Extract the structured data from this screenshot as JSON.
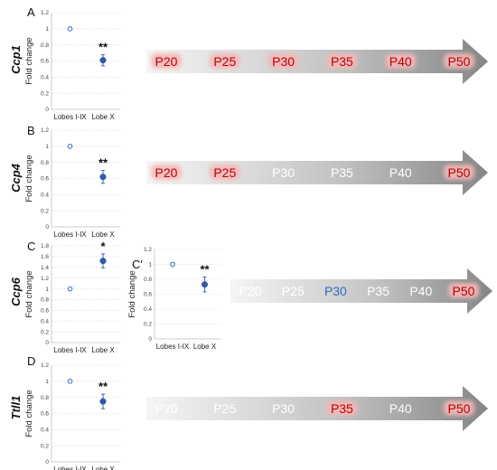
{
  "colors": {
    "point_ctrl_edge": "#4472c4",
    "point_fill": "#2e58a8",
    "error_bar": "#2e58a8",
    "grid": "#d9d9d9",
    "stage_red": "#c00000",
    "stage_white": "#ffffff",
    "stage_blue": "#2e6fc2",
    "stage_glow": "#f3b8b8",
    "arrow_light": "#f4f4f4",
    "arrow_dark": "#8a8a8a"
  },
  "chart_data": [
    {
      "type": "scatter",
      "panel": "A",
      "gene": "Ccp1",
      "ylabel": "Fold change",
      "categories": [
        "Lobes I-IX",
        "Lobe X"
      ],
      "values": [
        1.0,
        0.61
      ],
      "error": [
        0,
        0.07
      ],
      "ylim": [
        0,
        1.2
      ],
      "yticks": [
        "0",
        "0.2",
        "0.4",
        "0.6",
        "0.8",
        "1",
        "1.2"
      ],
      "significance": "**",
      "grid": true
    },
    {
      "type": "scatter",
      "panel": "B",
      "gene": "Ccp4",
      "ylabel": "Fold change",
      "categories": [
        "Lobes I-IX",
        "Lobe X"
      ],
      "values": [
        1.0,
        0.62
      ],
      "error": [
        0,
        0.08
      ],
      "ylim": [
        0,
        1.2
      ],
      "yticks": [
        "0",
        "0.2",
        "0.4",
        "0.6",
        "0.8",
        "1",
        "1.2"
      ],
      "significance": "**",
      "grid": true
    },
    {
      "type": "scatter",
      "panel": "C",
      "gene": "Ccp6",
      "ylabel": "Fold change",
      "categories": [
        "Lobes I-IX",
        "Lobe X"
      ],
      "values": [
        1.0,
        1.52
      ],
      "error": [
        0,
        0.13
      ],
      "ylim": [
        0,
        1.8
      ],
      "yticks": [
        "0",
        "0.2",
        "0.4",
        "0.6",
        "0.8",
        "1",
        "1.2",
        "1.4",
        "1.6",
        "1.8"
      ],
      "significance": "*",
      "grid": true
    },
    {
      "type": "scatter",
      "panel": "C'",
      "ylabel": "Fold change",
      "categories": [
        "Lobes I-IX",
        "Lobe X"
      ],
      "values": [
        1.0,
        0.73
      ],
      "error": [
        0,
        0.1
      ],
      "ylim": [
        0,
        1.2
      ],
      "yticks": [
        "0",
        "0.2",
        "0.4",
        "0.6",
        "0.8",
        "1",
        "1.2"
      ],
      "significance": "**",
      "grid": true
    },
    {
      "type": "scatter",
      "panel": "D",
      "gene": "Ttll1",
      "ylabel": "Fold change",
      "categories": [
        "Lobes I-IX",
        "Lobe X"
      ],
      "values": [
        1.0,
        0.75
      ],
      "error": [
        0,
        0.09
      ],
      "ylim": [
        0,
        1.2
      ],
      "yticks": [
        "0",
        "0.2",
        "0.4",
        "0.6",
        "0.8",
        "1",
        "1.2"
      ],
      "significance": "**",
      "grid": true
    }
  ],
  "timelines": [
    {
      "row": "A",
      "stages": [
        {
          "label": "P20",
          "color": "red"
        },
        {
          "label": "P25",
          "color": "red"
        },
        {
          "label": "P30",
          "color": "red"
        },
        {
          "label": "P35",
          "color": "red"
        },
        {
          "label": "P40",
          "color": "red"
        },
        {
          "label": "P50",
          "color": "red"
        }
      ]
    },
    {
      "row": "B",
      "stages": [
        {
          "label": "P20",
          "color": "red"
        },
        {
          "label": "P25",
          "color": "red"
        },
        {
          "label": "P30",
          "color": "white"
        },
        {
          "label": "P35",
          "color": "white"
        },
        {
          "label": "P40",
          "color": "white"
        },
        {
          "label": "P50",
          "color": "red"
        }
      ]
    },
    {
      "row": "C",
      "stages": [
        {
          "label": "P20",
          "color": "white"
        },
        {
          "label": "P25",
          "color": "white"
        },
        {
          "label": "P30",
          "color": "blue"
        },
        {
          "label": "P35",
          "color": "white"
        },
        {
          "label": "P40",
          "color": "white"
        },
        {
          "label": "P50",
          "color": "red"
        }
      ]
    },
    {
      "row": "D",
      "stages": [
        {
          "label": "P20",
          "color": "white"
        },
        {
          "label": "P25",
          "color": "white"
        },
        {
          "label": "P30",
          "color": "white"
        },
        {
          "label": "P35",
          "color": "red"
        },
        {
          "label": "P40",
          "color": "white"
        },
        {
          "label": "P50",
          "color": "red"
        }
      ]
    }
  ]
}
